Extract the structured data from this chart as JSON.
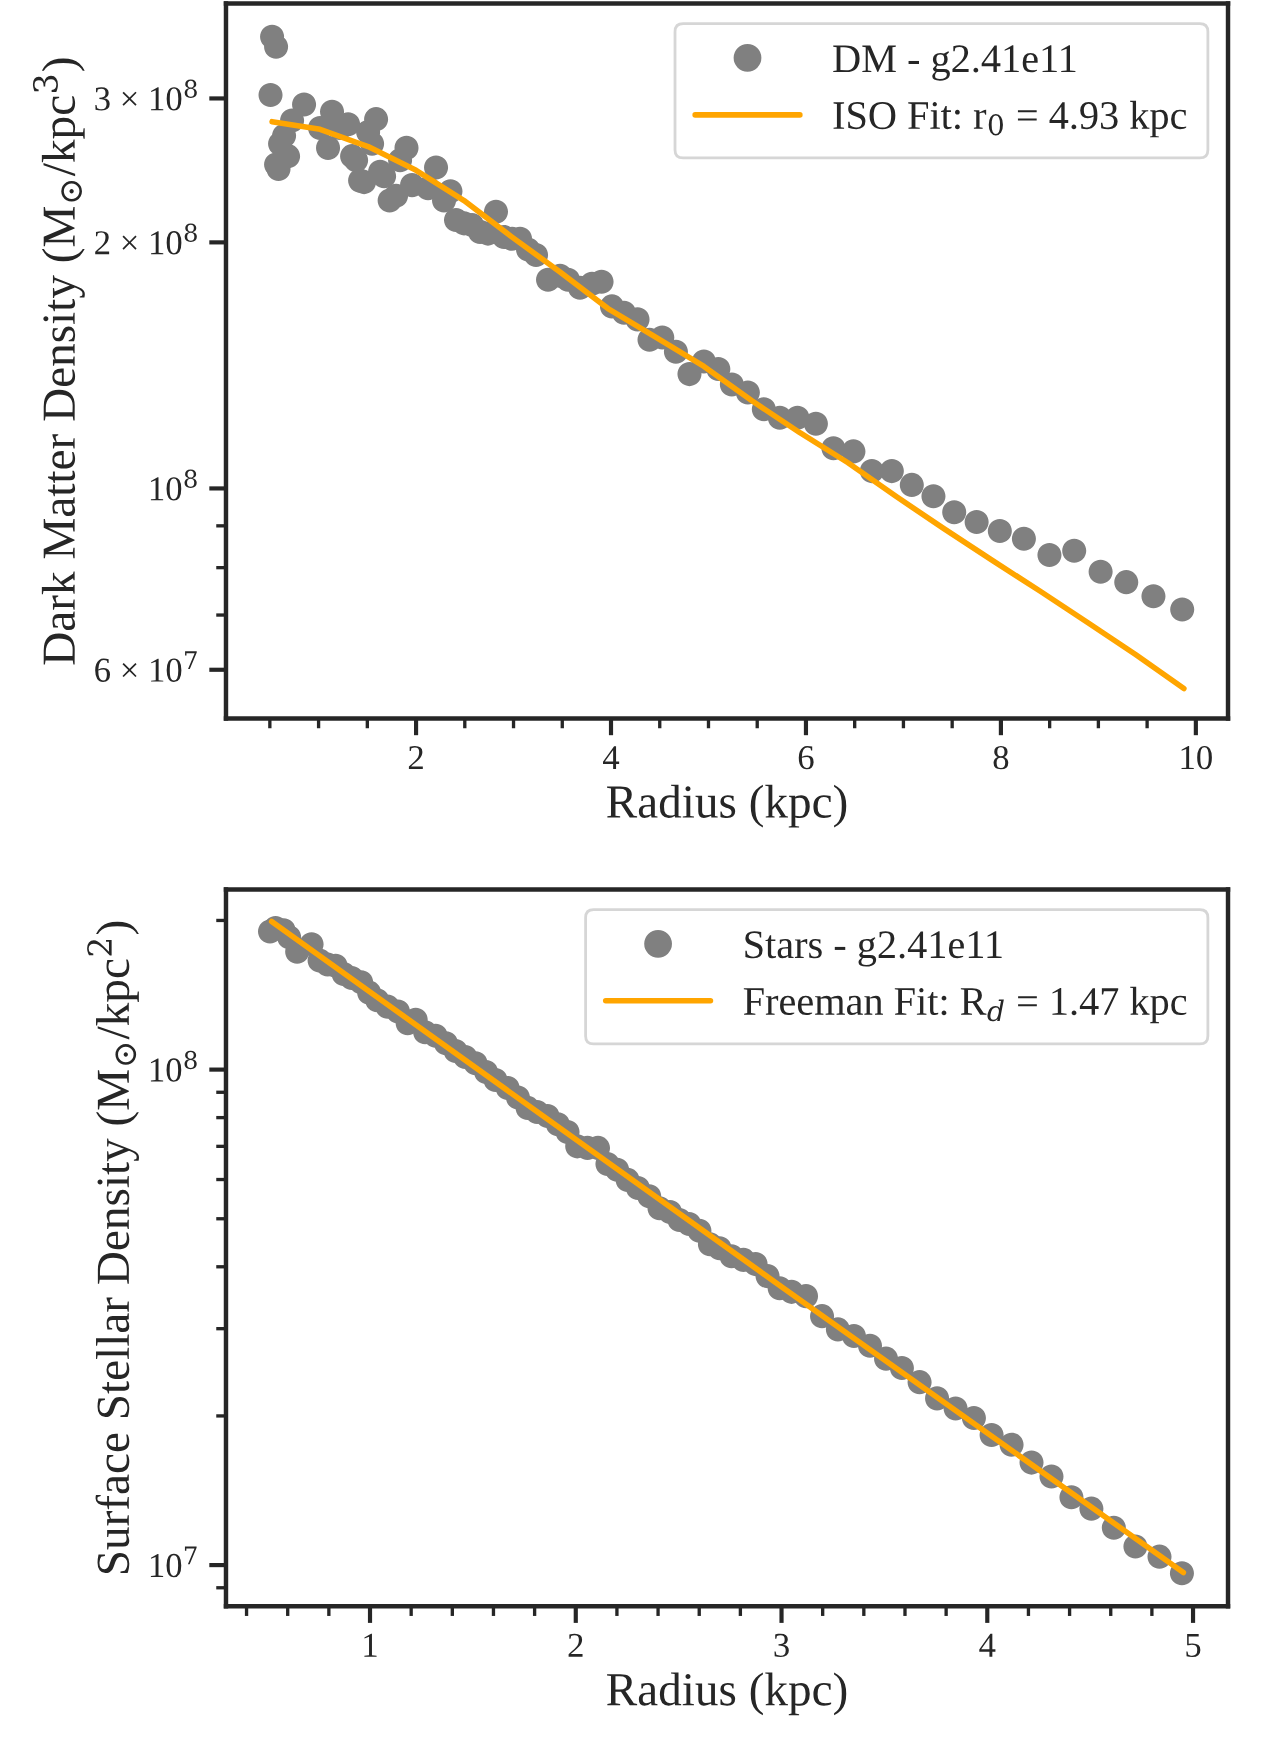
{
  "chart_data": [
    {
      "type": "scatter",
      "xlabel": "Radius (kpc)",
      "ylabel": "Dark Matter Density (M$_{⊙}$/kpc$^{3}$)",
      "log": "y",
      "legend": "top right",
      "xlim": [
        0.05,
        10.33
      ],
      "ylim": [
        52300000.0,
        392000000.0
      ],
      "xticks": [
        {
          "value": 0.5,
          "label": null
        },
        {
          "value": 1,
          "label": null
        },
        {
          "value": 1.5,
          "label": null
        },
        2,
        {
          "value": 2.5,
          "label": null
        },
        {
          "value": 3,
          "label": null
        },
        {
          "value": 3.5,
          "label": null
        },
        4,
        {
          "value": 4.5,
          "label": null
        },
        {
          "value": 5,
          "label": null
        },
        {
          "value": 5.5,
          "label": null
        },
        6,
        {
          "value": 6.5,
          "label": null
        },
        {
          "value": 7,
          "label": null
        },
        {
          "value": 7.5,
          "label": null
        },
        8,
        {
          "value": 8.5,
          "label": null
        },
        {
          "value": 9,
          "label": null
        },
        {
          "value": 9.5,
          "label": null
        },
        10
      ],
      "yticks": [
        {
          "value": 60000000.0,
          "label": "6 × 10$^{7}$"
        },
        {
          "value": 70000000.0,
          "label": null
        },
        {
          "value": 80000000.0,
          "label": null
        },
        {
          "value": 90000000.0,
          "label": null
        },
        {
          "value": 100000000.0,
          "label": "10$^{8}$"
        },
        {
          "value": 200000000.0,
          "label": "2 × 10$^{8}$"
        },
        {
          "value": 300000000.0,
          "label": "3 × 10$^{8}$"
        }
      ],
      "series": [
        {
          "name": "DM - g2.41e11",
          "marker": "circle",
          "color": "#808080",
          "x": [
            0.523,
            0.564,
            0.507,
            0.564,
            0.589,
            0.605,
            0.646,
            0.687,
            0.728,
            0.851,
            1.015,
            1.097,
            1.138,
            1.22,
            1.303,
            1.344,
            1.385,
            1.426,
            1.467,
            1.508,
            1.549,
            1.59,
            1.631,
            1.672,
            1.729,
            1.795,
            1.836,
            1.902,
            1.959,
            2.123,
            2.205,
            2.287,
            2.353,
            2.41,
            2.492,
            2.574,
            2.656,
            2.738,
            2.82,
            2.902,
            2.985,
            3.067,
            3.149,
            3.231,
            3.354,
            3.477,
            3.559,
            3.682,
            3.805,
            3.903,
            4.01,
            4.133,
            4.272,
            4.395,
            4.526,
            4.666,
            4.805,
            4.953,
            5.101,
            5.24,
            5.404,
            5.568,
            5.732,
            5.913,
            6.102,
            6.282,
            6.487,
            6.676,
            6.881,
            7.086,
            7.308,
            7.521,
            7.751,
            7.989,
            8.236,
            8.498,
            8.752,
            9.023,
            9.286,
            9.565,
            9.86
          ],
          "values": [
            357000000.0,
            347000000.0,
            303000000.0,
            249000000.0,
            246000000.0,
            264000000.0,
            270000000.0,
            255000000.0,
            282000000.0,
            295000000.0,
            276000000.0,
            261000000.0,
            289000000.0,
            276000000.0,
            279000000.0,
            255000000.0,
            252000000.0,
            238000000.0,
            237000000.0,
            273000000.0,
            264000000.0,
            283000000.0,
            244000000.0,
            241000000.0,
            225000000.0,
            228000000.0,
            252000000.0,
            261000000.0,
            235000000.0,
            233000000.0,
            247000000.0,
            225000000.0,
            231000000.0,
            213000000.0,
            211000000.0,
            210000000.0,
            206000000.0,
            205000000.0,
            218000000.0,
            203000000.0,
            202000000.0,
            202000000.0,
            196000000.0,
            193000000.0,
            180000000.0,
            182000000.0,
            180000000.0,
            176000000.0,
            178000000.0,
            179000000.0,
            167000000.0,
            164000000.0,
            161000000.0,
            152000000.0,
            153000000.0,
            147000000.0,
            138000000.0,
            143000000.0,
            140000000.0,
            134000000.0,
            131000000.0,
            125000000.0,
            122000000.0,
            122000000.0,
            120000000.0,
            112000000.0,
            111000000.0,
            105000000.0,
            105000000.0,
            101000000.0,
            97800000.0,
            93500000.0,
            91000000.0,
            88700000.0,
            86800000.0,
            82900000.0,
            83900000.0,
            79100000.0,
            76800000.0,
            73800000.0,
            71100000.0
          ]
        },
        {
          "name": "ISO Fit: r$_{0}$ = 4.93 kpc",
          "type": "line",
          "color": "#ffa500",
          "x": [
            0.523,
            1.015,
            1.508,
            2.0,
            2.492,
            2.985,
            3.477,
            3.969,
            4.462,
            4.954,
            5.446,
            5.938,
            6.431,
            6.923,
            7.415,
            7.908,
            8.4,
            8.893,
            9.385,
            9.877
          ],
          "values": [
            281000000.0,
            275000000.0,
            262000000.0,
            245000000.0,
            225000000.0,
            203000000.0,
            184000000.0,
            166000000.0,
            153000000.0,
            141000000.0,
            128000000.0,
            117000000.0,
            107500000.0,
            97800000.0,
            89300000.0,
            81700000.0,
            74900000.0,
            68500000.0,
            62600000.0,
            56900000.0
          ]
        }
      ]
    },
    {
      "type": "scatter",
      "xlabel": "Radius (kpc)",
      "ylabel": "Surface Stellar Density (M$_{⊙}$/kpc$^{2}$)",
      "log": "y",
      "legend": "top right",
      "xlim": [
        0.3,
        5.17
      ],
      "ylim": [
        8260000.0,
        231000000.0
      ],
      "xticks": [
        {
          "value": 0.4,
          "label": null
        },
        {
          "value": 0.6,
          "label": null
        },
        {
          "value": 0.8,
          "label": null
        },
        1,
        {
          "value": 1.2,
          "label": null
        },
        {
          "value": 1.4,
          "label": null
        },
        {
          "value": 1.6,
          "label": null
        },
        {
          "value": 1.8,
          "label": null
        },
        2,
        {
          "value": 2.2,
          "label": null
        },
        {
          "value": 2.4,
          "label": null
        },
        {
          "value": 2.6,
          "label": null
        },
        {
          "value": 2.8,
          "label": null
        },
        3,
        {
          "value": 3.2,
          "label": null
        },
        {
          "value": 3.4,
          "label": null
        },
        {
          "value": 3.6,
          "label": null
        },
        {
          "value": 3.8,
          "label": null
        },
        4,
        {
          "value": 4.2,
          "label": null
        },
        {
          "value": 4.4,
          "label": null
        },
        {
          "value": 4.6,
          "label": null
        },
        {
          "value": 4.8,
          "label": null
        },
        5
      ],
      "yticks": [
        {
          "value": 9000000.0,
          "label": null
        },
        {
          "value": 10000000.0,
          "label": "10$^{7}$"
        },
        {
          "value": 20000000.0,
          "label": null
        },
        {
          "value": 30000000.0,
          "label": null
        },
        {
          "value": 40000000.0,
          "label": null
        },
        {
          "value": 50000000.0,
          "label": null
        },
        {
          "value": 60000000.0,
          "label": null
        },
        {
          "value": 70000000.0,
          "label": null
        },
        {
          "value": 80000000.0,
          "label": null
        },
        {
          "value": 90000000.0,
          "label": null
        },
        {
          "value": 100000000.0,
          "label": "10$^{8}$"
        },
        {
          "value": 200000000.0,
          "label": null
        }
      ],
      "series": [
        {
          "name": "Stars - g2.41e11",
          "marker": "circle",
          "color": "#808080",
          "x": [
            0.514,
            0.541,
            0.58,
            0.607,
            0.646,
            0.716,
            0.755,
            0.794,
            0.833,
            0.872,
            0.911,
            0.957,
            0.996,
            1.035,
            1.085,
            1.136,
            1.183,
            1.222,
            1.268,
            1.319,
            1.369,
            1.416,
            1.463,
            1.513,
            1.564,
            1.61,
            1.669,
            1.719,
            1.766,
            1.812,
            1.863,
            1.913,
            1.96,
            2.007,
            2.057,
            2.108,
            2.154,
            2.201,
            2.252,
            2.302,
            2.357,
            2.407,
            2.458,
            2.504,
            2.551,
            2.601,
            2.652,
            2.699,
            2.757,
            2.815,
            2.874,
            2.932,
            2.991,
            3.049,
            3.119,
            3.197,
            3.274,
            3.352,
            3.43,
            3.508,
            3.585,
            3.671,
            3.756,
            3.846,
            3.935,
            4.021,
            4.118,
            4.215,
            4.312,
            4.409,
            4.506,
            4.615,
            4.72,
            4.837,
            4.946
          ],
          "values": [
            190000000.0,
            193000000.0,
            191000000.0,
            185000000.0,
            173000000.0,
            179000000.0,
            166000000.0,
            163000000.0,
            162000000.0,
            156000000.0,
            153000000.0,
            150000000.0,
            143000000.0,
            138000000.0,
            134000000.0,
            131000000.0,
            124000000.0,
            126000000.0,
            119000000.0,
            117000000.0,
            113000000.0,
            109000000.0,
            106000000.0,
            103000000.0,
            98900000.0,
            95300000.0,
            91800000.0,
            87800000.0,
            83700000.0,
            82100000.0,
            80600000.0,
            77600000.0,
            74800000.0,
            70000000.0,
            69500000.0,
            69500000.0,
            64500000.0,
            62800000.0,
            59900000.0,
            57700000.0,
            55500000.0,
            52500000.0,
            51600000.0,
            49700000.0,
            48800000.0,
            47300000.0,
            44400000.0,
            43600000.0,
            42000000.0,
            41300000.0,
            40500000.0,
            38300000.0,
            36200000.0,
            35600000.0,
            34900000.0,
            31800000.0,
            29900000.0,
            29000000.0,
            27700000.0,
            26100000.0,
            25000000.0,
            23400000.0,
            21700000.0,
            20700000.0,
            19800000.0,
            18300000.0,
            17500000.0,
            16100000.0,
            15100000.0,
            13700000.0,
            13000000.0,
            11900000.0,
            10900000.0,
            10400000.0,
            9630000.0
          ]
        },
        {
          "name": "Freeman Fit: R$_{d}$ = 1.47 kpc",
          "type": "line",
          "color": "#ffa500",
          "x": [
            0.522,
            3.01,
            4.953
          ],
          "values": [
            199000000.0,
            36200000.0,
            9660000.0
          ]
        }
      ]
    }
  ]
}
